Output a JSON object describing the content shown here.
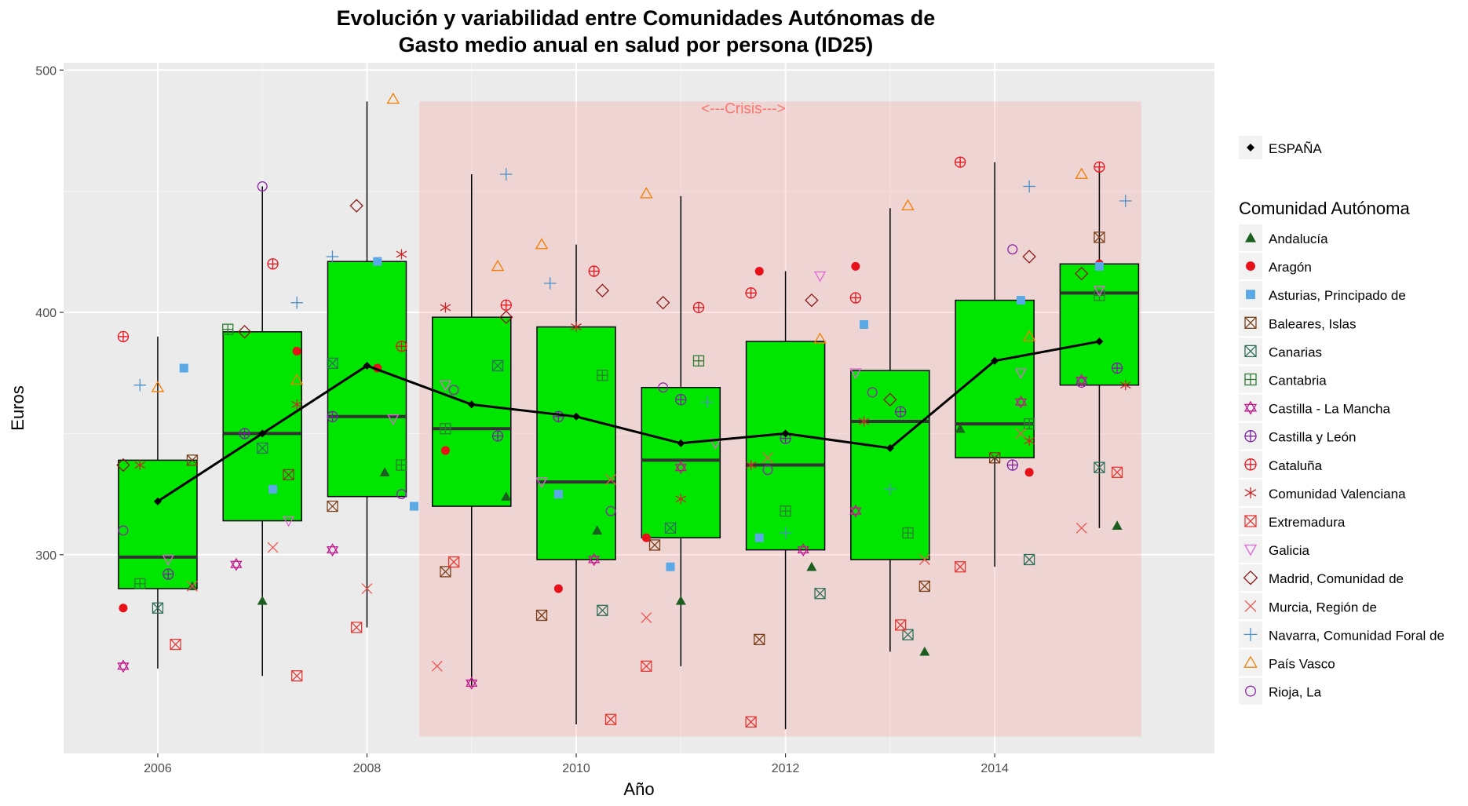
{
  "chart_data": {
    "type": "boxplot",
    "title": "Evolución y variabilidad entre Comunidades Autónomas de",
    "subtitle": "Gasto medio anual en salud por persona (ID25)",
    "xlabel": "Año",
    "ylabel": "Euros",
    "xlim": [
      2005.1,
      2016.1
    ],
    "ylim": [
      218,
      503
    ],
    "x_ticks": [
      2006,
      2008,
      2010,
      2012,
      2014
    ],
    "y_ticks": [
      300,
      400,
      500
    ],
    "grid": true,
    "legend_position": "right",
    "annotation": {
      "text": "<---Crisis--->",
      "x_start": 2008.5,
      "x_end": 2015.4,
      "y_bottom": 225,
      "y_top": 487,
      "color": "#f8766d"
    },
    "box_fill": "#00e600",
    "boxes": [
      {
        "year": 2006,
        "low": 253,
        "q1": 286,
        "median": 299,
        "q3": 339,
        "high": 390
      },
      {
        "year": 2007,
        "low": 250,
        "q1": 314,
        "median": 350,
        "q3": 392,
        "high": 452
      },
      {
        "year": 2008,
        "low": 270,
        "q1": 324,
        "median": 357,
        "q3": 421,
        "high": 487
      },
      {
        "year": 2009,
        "low": 246,
        "q1": 320,
        "median": 352,
        "q3": 398,
        "high": 457
      },
      {
        "year": 2010,
        "low": 230,
        "q1": 298,
        "median": 330,
        "q3": 394,
        "high": 428
      },
      {
        "year": 2011,
        "low": 254,
        "q1": 307,
        "median": 339,
        "q3": 369,
        "high": 448
      },
      {
        "year": 2012,
        "low": 228,
        "q1": 302,
        "median": 337,
        "q3": 388,
        "high": 417
      },
      {
        "year": 2013,
        "low": 260,
        "q1": 298,
        "median": 355,
        "q3": 376,
        "high": 443
      },
      {
        "year": 2014,
        "low": 295,
        "q1": 340,
        "median": 354,
        "q3": 405,
        "high": 462
      },
      {
        "year": 2015,
        "low": 311,
        "q1": 370,
        "median": 408,
        "q3": 420,
        "high": 460
      }
    ],
    "espana_series": {
      "name": "ESPAÑA",
      "x": [
        2006,
        2007,
        2008,
        2009,
        2010,
        2011,
        2012,
        2013,
        2014,
        2015
      ],
      "y": [
        322,
        350,
        378,
        362,
        357,
        346,
        350,
        344,
        380,
        388
      ]
    },
    "legend_title": "Comunidad Autónoma",
    "series": [
      {
        "name": "Andalucía",
        "color": "#1b5e20",
        "shape": "triangle",
        "points": [
          [
            2006.33,
            287
          ],
          [
            2007.0,
            281
          ],
          [
            2008.17,
            334
          ],
          [
            2009.33,
            324
          ],
          [
            2010.2,
            310
          ],
          [
            2011.0,
            281
          ],
          [
            2012.25,
            295
          ],
          [
            2013.33,
            260
          ],
          [
            2013.67,
            352
          ],
          [
            2015.17,
            312
          ]
        ]
      },
      {
        "name": "Aragón",
        "color": "#e8111a",
        "shape": "circle",
        "points": [
          [
            2005.67,
            278
          ],
          [
            2007.33,
            384
          ],
          [
            2008.1,
            377
          ],
          [
            2008.75,
            343
          ],
          [
            2009.83,
            286
          ],
          [
            2010.67,
            307
          ],
          [
            2011.75,
            417
          ],
          [
            2012.67,
            419
          ],
          [
            2014.33,
            334
          ],
          [
            2015.0,
            420
          ]
        ]
      },
      {
        "name": "Asturias, Principado de",
        "color": "#5aa9e6",
        "shape": "square",
        "points": [
          [
            2006.25,
            377
          ],
          [
            2007.1,
            327
          ],
          [
            2008.1,
            421
          ],
          [
            2008.45,
            320
          ],
          [
            2009.83,
            325
          ],
          [
            2010.9,
            295
          ],
          [
            2011.75,
            307
          ],
          [
            2012.75,
            395
          ],
          [
            2014.25,
            405
          ],
          [
            2015.0,
            419
          ]
        ]
      },
      {
        "name": "Baleares, Islas",
        "color": "#7a3f1a",
        "shape": "square-cross",
        "points": [
          [
            2006.33,
            339
          ],
          [
            2007.25,
            333
          ],
          [
            2007.67,
            320
          ],
          [
            2008.75,
            293
          ],
          [
            2009.67,
            275
          ],
          [
            2010.75,
            304
          ],
          [
            2011.75,
            265
          ],
          [
            2013.33,
            287
          ],
          [
            2014.0,
            340
          ],
          [
            2015.0,
            431
          ]
        ]
      },
      {
        "name": "Canarias",
        "color": "#2f6f5a",
        "shape": "square-x",
        "points": [
          [
            2006.0,
            278
          ],
          [
            2007.0,
            344
          ],
          [
            2007.67,
            379
          ],
          [
            2009.25,
            378
          ],
          [
            2010.25,
            277
          ],
          [
            2010.9,
            311
          ],
          [
            2012.33,
            284
          ],
          [
            2013.17,
            267
          ],
          [
            2014.33,
            298
          ],
          [
            2015.0,
            336
          ]
        ]
      },
      {
        "name": "Cantabria",
        "color": "#2e7d32",
        "shape": "square-plus",
        "points": [
          [
            2005.83,
            288
          ],
          [
            2006.67,
            393
          ],
          [
            2008.33,
            337
          ],
          [
            2008.75,
            352
          ],
          [
            2010.25,
            374
          ],
          [
            2011.17,
            380
          ],
          [
            2012.0,
            318
          ],
          [
            2013.17,
            309
          ],
          [
            2014.33,
            354
          ],
          [
            2015.0,
            407
          ]
        ]
      },
      {
        "name": "Castilla - La Mancha",
        "color": "#c2168c",
        "shape": "star-of-david",
        "points": [
          [
            2005.67,
            254
          ],
          [
            2006.75,
            296
          ],
          [
            2007.67,
            302
          ],
          [
            2009.0,
            247
          ],
          [
            2010.17,
            298
          ],
          [
            2011.0,
            336
          ],
          [
            2012.17,
            302
          ],
          [
            2012.67,
            318
          ],
          [
            2014.25,
            363
          ],
          [
            2014.83,
            372
          ]
        ]
      },
      {
        "name": "Castilla y León",
        "color": "#7b1fa2",
        "shape": "circle-plus",
        "points": [
          [
            2006.1,
            292
          ],
          [
            2006.83,
            350
          ],
          [
            2007.67,
            357
          ],
          [
            2009.25,
            349
          ],
          [
            2009.83,
            357
          ],
          [
            2011.0,
            364
          ],
          [
            2012.0,
            348
          ],
          [
            2013.1,
            359
          ],
          [
            2014.17,
            337
          ],
          [
            2015.17,
            377
          ]
        ]
      },
      {
        "name": "Cataluña",
        "color": "#e8111a",
        "shape": "circle-plus",
        "points": [
          [
            2005.67,
            390
          ],
          [
            2007.1,
            420
          ],
          [
            2008.33,
            386
          ],
          [
            2009.33,
            403
          ],
          [
            2010.17,
            417
          ],
          [
            2011.17,
            402
          ],
          [
            2011.67,
            408
          ],
          [
            2012.67,
            406
          ],
          [
            2013.67,
            462
          ],
          [
            2015.0,
            460
          ]
        ]
      },
      {
        "name": "Comunidad Valenciana",
        "color": "#c62828",
        "shape": "asterisk",
        "points": [
          [
            2005.83,
            337
          ],
          [
            2007.33,
            362
          ],
          [
            2008.33,
            424
          ],
          [
            2008.75,
            402
          ],
          [
            2010.0,
            394
          ],
          [
            2011.0,
            323
          ],
          [
            2011.67,
            337
          ],
          [
            2012.75,
            355
          ],
          [
            2014.33,
            347
          ],
          [
            2015.25,
            370
          ]
        ]
      },
      {
        "name": "Extremadura",
        "color": "#e53935",
        "shape": "square-x",
        "points": [
          [
            2006.17,
            263
          ],
          [
            2007.33,
            250
          ],
          [
            2007.9,
            270
          ],
          [
            2008.83,
            297
          ],
          [
            2010.33,
            232
          ],
          [
            2010.67,
            254
          ],
          [
            2011.67,
            231
          ],
          [
            2013.1,
            271
          ],
          [
            2013.67,
            295
          ],
          [
            2015.17,
            334
          ]
        ]
      },
      {
        "name": "Galicia",
        "color": "#e065d8",
        "shape": "triangle-down",
        "points": [
          [
            2006.1,
            298
          ],
          [
            2007.25,
            314
          ],
          [
            2008.25,
            356
          ],
          [
            2008.75,
            370
          ],
          [
            2009.67,
            330
          ],
          [
            2011.33,
            346
          ],
          [
            2012.33,
            415
          ],
          [
            2012.67,
            375
          ],
          [
            2014.25,
            375
          ],
          [
            2015.0,
            409
          ]
        ]
      },
      {
        "name": "Madrid, Comunidad de",
        "color": "#8b1a1a",
        "shape": "diamond",
        "points": [
          [
            2005.67,
            337
          ],
          [
            2006.83,
            392
          ],
          [
            2007.9,
            444
          ],
          [
            2009.33,
            398
          ],
          [
            2010.25,
            409
          ],
          [
            2010.83,
            404
          ],
          [
            2012.25,
            405
          ],
          [
            2013.0,
            364
          ],
          [
            2014.33,
            423
          ],
          [
            2014.83,
            416
          ]
        ]
      },
      {
        "name": "Murcia, Región de",
        "color": "#ef5350",
        "shape": "x",
        "points": [
          [
            2006.33,
            287
          ],
          [
            2008.0,
            286
          ],
          [
            2008.67,
            254
          ],
          [
            2010.67,
            274
          ],
          [
            2011.83,
            340
          ],
          [
            2013.33,
            298
          ],
          [
            2014.25,
            350
          ],
          [
            2014.83,
            311
          ],
          [
            2010.33,
            331
          ],
          [
            2007.1,
            303
          ]
        ]
      },
      {
        "name": "Navarra, Comunidad Foral de",
        "color": "#4a8fc9",
        "shape": "plus",
        "points": [
          [
            2005.83,
            370
          ],
          [
            2007.33,
            404
          ],
          [
            2007.67,
            423
          ],
          [
            2009.33,
            457
          ],
          [
            2009.75,
            412
          ],
          [
            2011.25,
            363
          ],
          [
            2012.0,
            309
          ],
          [
            2013.0,
            327
          ],
          [
            2014.33,
            452
          ],
          [
            2015.25,
            446
          ]
        ]
      },
      {
        "name": "País Vasco",
        "color": "#f57c00",
        "shape": "triangle-open",
        "points": [
          [
            2006.0,
            369
          ],
          [
            2007.33,
            372
          ],
          [
            2008.25,
            488
          ],
          [
            2009.25,
            419
          ],
          [
            2009.67,
            428
          ],
          [
            2010.67,
            449
          ],
          [
            2012.33,
            389
          ],
          [
            2013.17,
            444
          ],
          [
            2014.33,
            390
          ],
          [
            2014.83,
            457
          ]
        ]
      },
      {
        "name": "Rioja, La",
        "color": "#8e24aa",
        "shape": "circle-open",
        "points": [
          [
            2005.67,
            310
          ],
          [
            2007.0,
            452
          ],
          [
            2008.33,
            325
          ],
          [
            2008.83,
            368
          ],
          [
            2010.33,
            318
          ],
          [
            2010.83,
            369
          ],
          [
            2011.83,
            335
          ],
          [
            2012.83,
            367
          ],
          [
            2014.17,
            426
          ],
          [
            2014.83,
            371
          ]
        ]
      }
    ]
  }
}
